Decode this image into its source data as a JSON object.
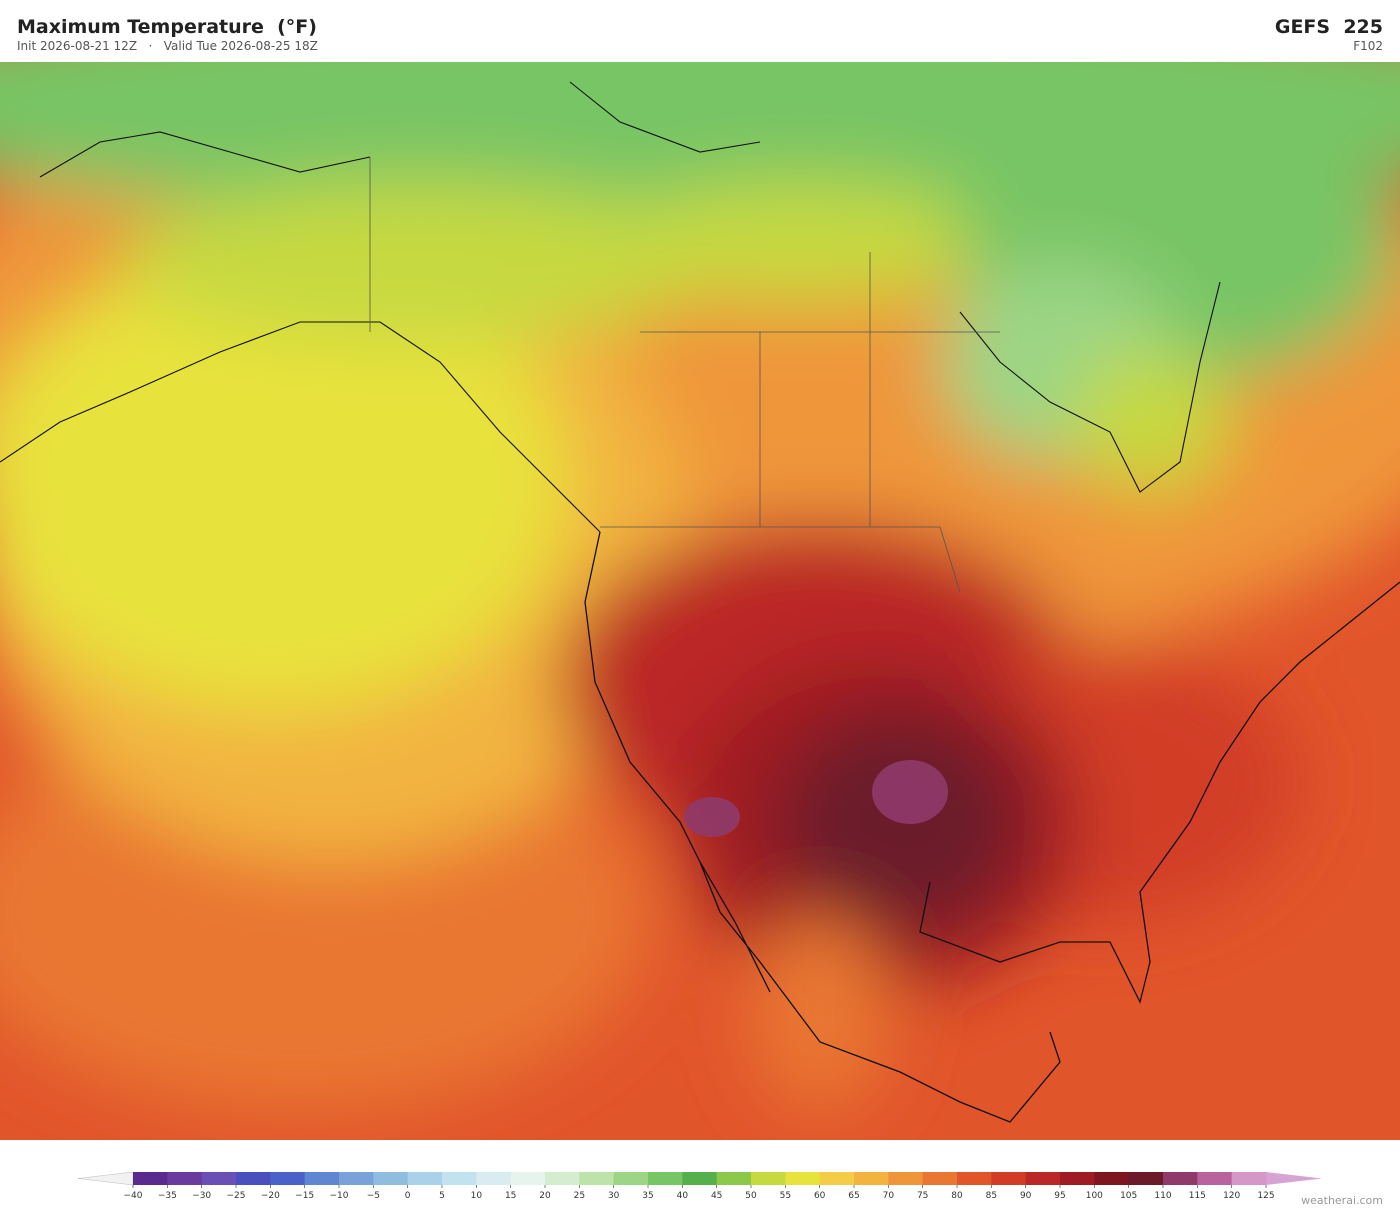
{
  "header": {
    "title": "Maximum Temperature  (°F)",
    "subtitle": "Init 2026-08-21 12Z   ·   Valid Tue 2026-08-25 18Z",
    "model": "GEFS  225",
    "forecast_hour": "F102"
  },
  "colorbar": {
    "ticks": [
      {
        "value": -40,
        "label": "−40"
      },
      {
        "value": -35,
        "label": "−35"
      },
      {
        "value": -30,
        "label": "−30"
      },
      {
        "value": -25,
        "label": "−25"
      },
      {
        "value": -20,
        "label": "−20"
      },
      {
        "value": -15,
        "label": "−15"
      },
      {
        "value": -10,
        "label": "−10"
      },
      {
        "value": -5,
        "label": "−5"
      },
      0,
      5,
      10,
      15,
      20,
      25,
      30,
      35,
      40,
      45,
      50,
      55,
      60,
      65,
      70,
      75,
      80,
      85,
      90,
      95,
      100,
      105,
      110,
      115,
      120,
      125
    ],
    "colors": [
      "#5b2a8e",
      "#6a3a9f",
      "#6a4fb5",
      "#4a4fc0",
      "#4a62c8",
      "#5f86d0",
      "#79a3d8",
      "#8fbde0",
      "#a9d2ea",
      "#c2e2ef",
      "#d8ecf2",
      "#e7f4ee",
      "#d4edcf",
      "#bde3a8",
      "#9bd585",
      "#78c565",
      "#55b04c",
      "#8cc94a",
      "#c6d93f",
      "#e8e23c",
      "#f2cd45",
      "#f2b43f",
      "#ef963a",
      "#e97733",
      "#e1552b",
      "#d23c27",
      "#bb2726",
      "#9e1c22",
      "#7d161f",
      "#6b1a2a",
      "#8f3a6a",
      "#b8639e",
      "#d596c8"
    ],
    "under_color": "#f2f2f2",
    "over_color": "#d7a3d3"
  },
  "footer": {
    "watermark": "weatherai.com"
  }
}
